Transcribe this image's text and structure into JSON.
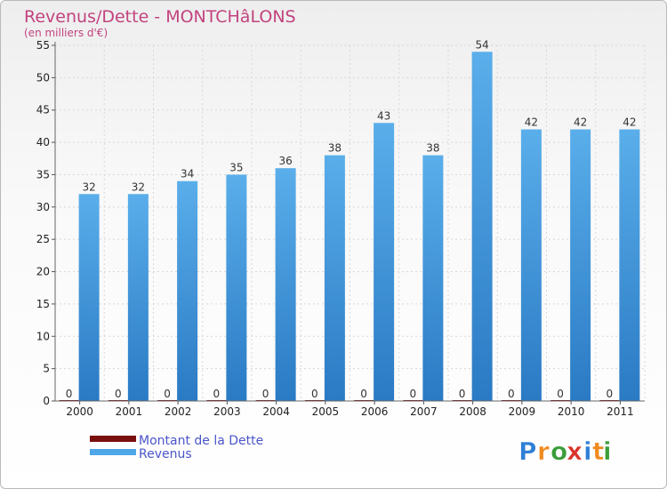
{
  "chart_data": {
    "type": "bar",
    "title": "Revenus/Dette - MONTCHâLONS",
    "subtitle": "(en milliers d'€)",
    "categories": [
      "2000",
      "2001",
      "2002",
      "2003",
      "2004",
      "2005",
      "2006",
      "2007",
      "2008",
      "2009",
      "2010",
      "2011"
    ],
    "series": [
      {
        "name": "Montant de la Dette",
        "color": "#7a0f0f",
        "values": [
          0,
          0,
          0,
          0,
          0,
          0,
          0,
          0,
          0,
          0,
          0,
          0
        ]
      },
      {
        "name": "Revenus",
        "color": "#4da6e8",
        "values": [
          32,
          32,
          34,
          35,
          36,
          38,
          43,
          38,
          54,
          42,
          42,
          42
        ]
      }
    ],
    "yticks": [
      0,
      5,
      10,
      15,
      20,
      25,
      30,
      35,
      40,
      45,
      50,
      55
    ],
    "ylim": [
      0,
      55
    ],
    "grid": true,
    "legend_position": "bottom-left"
  },
  "logo": {
    "letters": [
      "P",
      "r",
      "o",
      "x",
      "i",
      "t",
      "i"
    ],
    "colors": [
      "#2f7fd6",
      "#f08a1e",
      "#3a9d3a",
      "#d9342a",
      "#2f7fd6",
      "#f08a1e",
      "#3a9d3a"
    ]
  }
}
